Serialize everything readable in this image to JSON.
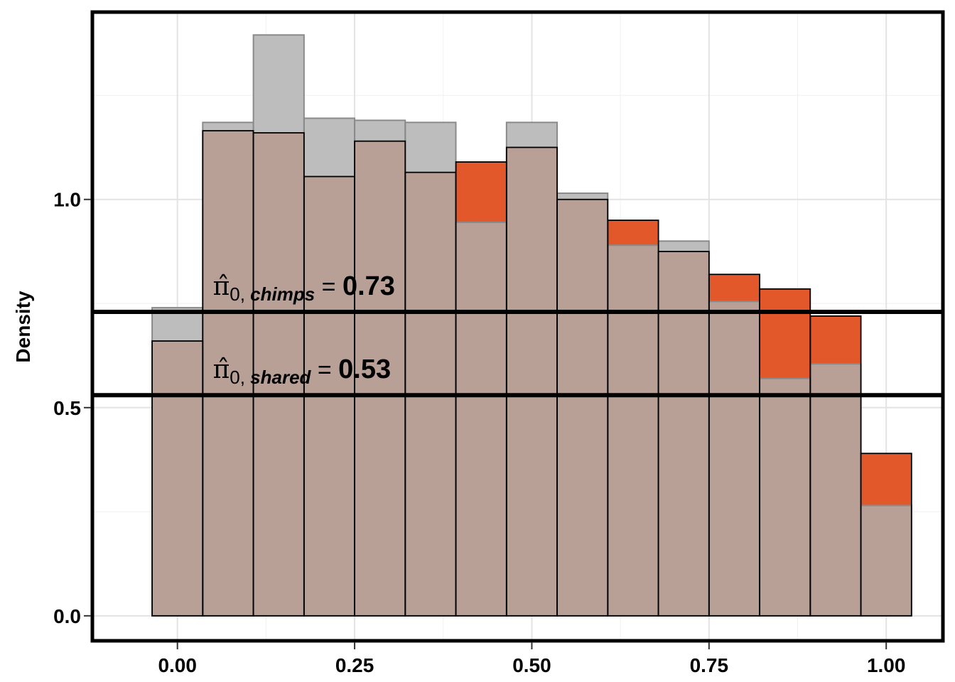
{
  "chart_data": {
    "type": "bar",
    "subtype": "overlaid-histogram",
    "title": "",
    "xlabel": "",
    "ylabel": "Density",
    "xlim": [
      -0.12,
      1.08
    ],
    "ylim": [
      -0.06,
      1.45
    ],
    "grid": true,
    "legend": "none",
    "x_ticks": [
      {
        "value": 0.0,
        "label": "0.00"
      },
      {
        "value": 0.25,
        "label": "0.25"
      },
      {
        "value": 0.5,
        "label": "0.50"
      },
      {
        "value": 0.75,
        "label": "0.75"
      },
      {
        "value": 1.0,
        "label": "1.00"
      }
    ],
    "y_ticks": [
      {
        "value": 0.0,
        "label": "0.0"
      },
      {
        "value": 0.5,
        "label": "0.5"
      },
      {
        "value": 1.0,
        "label": "1.0"
      }
    ],
    "bin_centers": [
      0.0,
      0.0714,
      0.1429,
      0.2143,
      0.2857,
      0.3571,
      0.4286,
      0.5,
      0.5714,
      0.6429,
      0.7143,
      0.7857,
      0.8571,
      0.9286,
      1.0
    ],
    "bin_width": 0.0714,
    "series": [
      {
        "color": "#e2582a",
        "values": [
          0.66,
          1.165,
          1.16,
          1.055,
          1.14,
          1.065,
          1.09,
          1.125,
          1.0,
          0.95,
          0.875,
          0.82,
          0.785,
          0.72,
          0.39
        ]
      },
      {
        "color": "#bdbdbd",
        "values": [
          0.74,
          1.185,
          1.395,
          1.195,
          1.19,
          1.185,
          0.945,
          1.185,
          1.015,
          0.89,
          0.9,
          0.755,
          0.57,
          0.605,
          0.265
        ]
      }
    ],
    "overlap_color": "#b8a097",
    "hlines": [
      {
        "value": 0.73,
        "label_prefix": "0, ",
        "label_sub": "chimps",
        "label_value": "0.73"
      },
      {
        "value": 0.53,
        "label_prefix": "0, ",
        "label_sub": "shared",
        "label_value": "0.53"
      }
    ]
  }
}
